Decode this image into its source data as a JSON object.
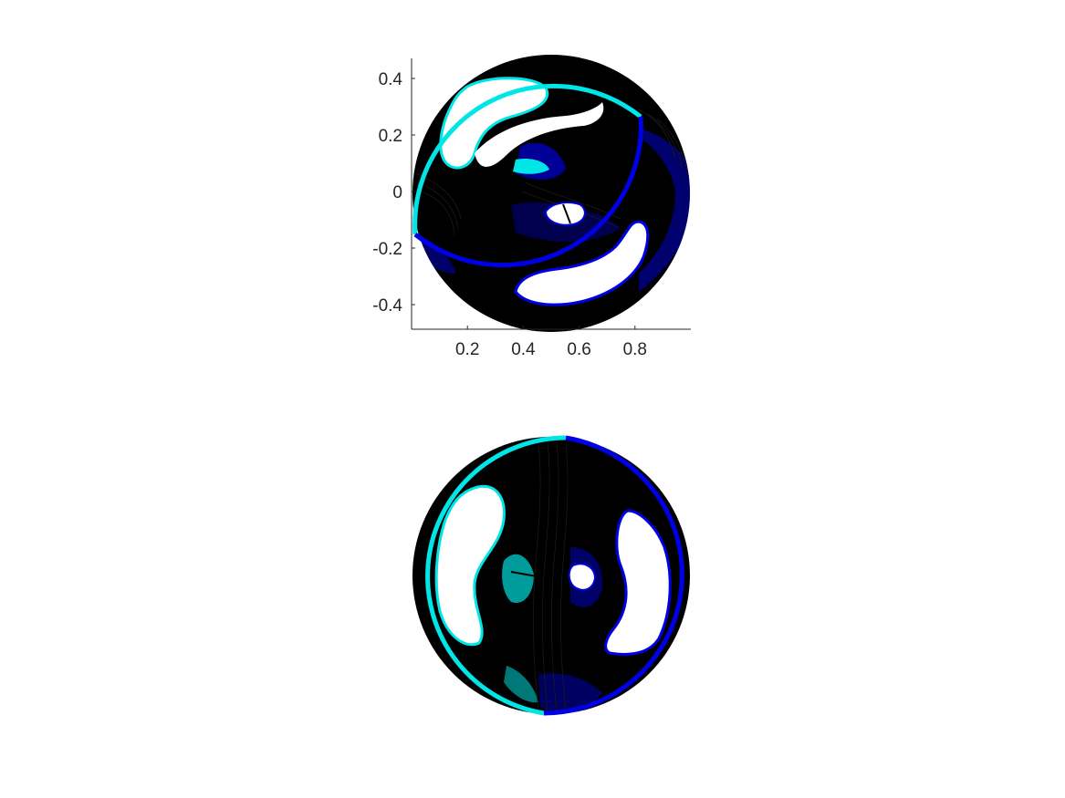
{
  "chart_data": [
    {
      "type": "contour",
      "title": "",
      "xlabel": "",
      "ylabel": "",
      "xlim": [
        0,
        1
      ],
      "ylim": [
        -0.48,
        0.47
      ],
      "x_ticks": [
        0.2,
        0.4,
        0.6,
        0.8
      ],
      "x_tick_labels": [
        "0.2",
        "0.4",
        "0.6",
        "0.8"
      ],
      "y_ticks": [
        0.4,
        0.2,
        0,
        -0.2,
        -0.4
      ],
      "y_tick_labels": [
        "0.4",
        "0.2",
        "0",
        "-0.2",
        "-0.4"
      ],
      "axes_visible": true,
      "disk_center": [
        0.5,
        -0.01
      ],
      "disk_radius": 0.49,
      "colors": {
        "contour": "#000000",
        "boundary_left": "#00e5e5",
        "boundary_right": "#0000e6",
        "fill": "#000000"
      },
      "orientation": "swirl"
    },
    {
      "type": "contour",
      "title": "",
      "xlabel": "",
      "ylabel": "",
      "axes_visible": false,
      "colors": {
        "contour": "#000000",
        "boundary_left": "#00e5e5",
        "boundary_right": "#0000e6",
        "fill": "#000000"
      },
      "orientation": "split"
    }
  ]
}
